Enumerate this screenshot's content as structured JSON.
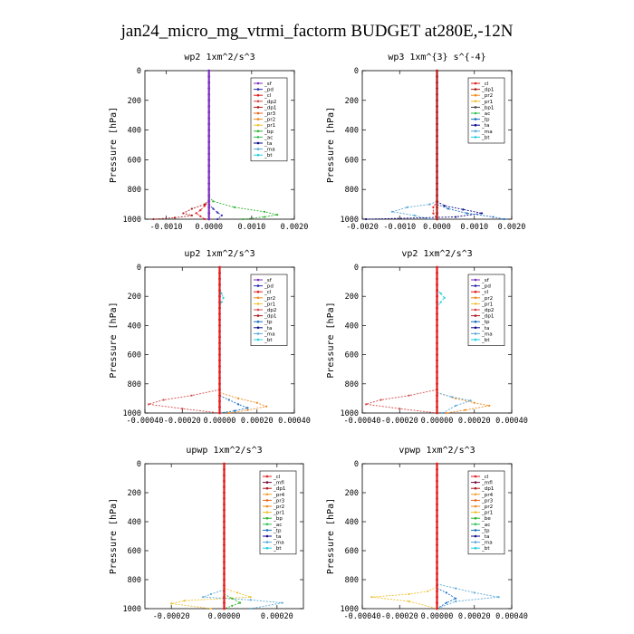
{
  "figure": {
    "title": "jan24_micro_mg_vtrmi_factorm  BUDGET at280E,-12N"
  },
  "colors": {
    "_sf": "#7b2fbe",
    "_pd": "#2a2ab4",
    "_cl": "#e21c1c",
    "_mfl": "#7a0e3a",
    "_dp1": "#b01c1c",
    "_dp2": "#d84848",
    "_dp3": "#d84848",
    "_pr1": "#f0c030",
    "_pr2": "#f08a1c",
    "_pr3": "#e8641c",
    "_pr4": "#f0a030",
    "_bp": "#2cb42c",
    "_be": "#2cb42c",
    "_ac": "#30c050",
    "_tp": "#1c70c0",
    "_ta": "#0a0a8c",
    "_ma": "#5aaad8",
    "_bt": "#20d0e0"
  },
  "chart_data": [
    {
      "type": "line",
      "title": "wp2  1xm^2/s^3",
      "ylabel": "Pressure [hPa]",
      "xlim": [
        -0.0015,
        0.002
      ],
      "ylim": [
        1000,
        0
      ],
      "xticks": [
        -0.001,
        0.0,
        0.001,
        0.002
      ],
      "xtick_labels": [
        "-0.0010",
        "0.0000",
        "0.0010",
        "0.0020"
      ],
      "yticks": [
        0,
        200,
        400,
        600,
        800,
        1000
      ],
      "legend": [
        "_sf",
        "_pd",
        "_cl",
        "_dp2",
        "_dp1",
        "_pr3",
        "_pr2",
        "_pr1",
        "_bp",
        "_ac",
        "_ta",
        "_ma",
        "_bt"
      ],
      "legend_position": "top-right",
      "series": [
        {
          "name": "_bp",
          "x": [
            0,
            0.0001,
            0.0006,
            0.0013,
            0.0016,
            0.0013,
            0.0008
          ],
          "y": [
            850,
            880,
            920,
            950,
            970,
            985,
            1000
          ]
        },
        {
          "name": "_dp1",
          "x": [
            0,
            -0.0001,
            -0.0004,
            -0.0006,
            -0.0004,
            -0.0008,
            -0.0013
          ],
          "y": [
            870,
            900,
            930,
            960,
            975,
            990,
            1000
          ]
        },
        {
          "name": "_cl",
          "x": [
            0,
            -0.0001,
            -0.0002,
            -0.0003,
            -0.0002,
            -0.0001
          ],
          "y": [
            880,
            910,
            940,
            960,
            980,
            1000
          ]
        },
        {
          "name": "_pd",
          "x": [
            0,
            0.0001,
            0.0002,
            0.0003,
            0.0002
          ],
          "y": [
            900,
            930,
            955,
            975,
            1000
          ]
        },
        {
          "name": "_sf",
          "x": [
            0,
            0,
            0
          ],
          "y": [
            0,
            500,
            1000
          ]
        }
      ]
    },
    {
      "type": "line",
      "title": "wp3  1xm^{3} s^{-4}",
      "ylabel": "Pressure [hPa]",
      "xlim": [
        -0.002,
        0.002
      ],
      "ylim": [
        1000,
        0
      ],
      "xticks": [
        -0.002,
        -0.001,
        0.0,
        0.001,
        0.002
      ],
      "xtick_labels": [
        "-0.0020",
        "-0.0010",
        "0.0000",
        "0.0010",
        "0.0020"
      ],
      "yticks": [
        0,
        200,
        400,
        600,
        800,
        1000
      ],
      "legend": [
        "_cl",
        "_dp1",
        "_pr2",
        "_pr1",
        "_bp1",
        "_ac",
        "_tp",
        "_ta",
        "_ma",
        "_bt"
      ],
      "legend_position": "top-right",
      "series": [
        {
          "name": "_ma",
          "x": [
            0,
            -0.0002,
            -0.0008,
            -0.0012,
            -0.0006,
            -0.0002
          ],
          "y": [
            880,
            900,
            920,
            950,
            975,
            1000
          ]
        },
        {
          "name": "_ta",
          "x": [
            0,
            0.0002,
            0.0007,
            0.0012,
            0.0005,
            -0.0019
          ],
          "y": [
            880,
            910,
            935,
            960,
            985,
            1000
          ]
        },
        {
          "name": "_tp",
          "x": [
            0,
            0.0003,
            0.0008,
            0.0015,
            0.0018
          ],
          "y": [
            900,
            930,
            960,
            985,
            1000
          ]
        },
        {
          "name": "_cl",
          "x": [
            0,
            -0.0001,
            -0.0001,
            0
          ],
          "y": [
            880,
            920,
            960,
            1000
          ]
        },
        {
          "name": "_dp1",
          "x": [
            0,
            0,
            0
          ],
          "y": [
            0,
            500,
            1000
          ]
        }
      ]
    },
    {
      "type": "line",
      "title": "up2  1xm^2/s^3",
      "ylabel": "Pressure [hPa]",
      "xlim": [
        -0.0004,
        0.0004
      ],
      "ylim": [
        1000,
        0
      ],
      "xticks": [
        -0.0004,
        -0.0002,
        0.0,
        0.0002,
        0.0004
      ],
      "xtick_labels": [
        "-0.00040",
        "-0.00020",
        "0.00000",
        "0.00020",
        "0.00040"
      ],
      "yticks": [
        0,
        200,
        400,
        600,
        800,
        1000
      ],
      "legend": [
        "_sf",
        "_pd",
        "_cl",
        "_pr2",
        "_pr1",
        "_dp2",
        "_dp1",
        "_tp",
        "_ta",
        "_ma",
        "_bt"
      ],
      "legend_position": "top-right",
      "series": [
        {
          "name": "_dp2",
          "x": [
            0,
            -0.00015,
            -0.0003,
            -0.00038,
            -0.0002,
            0
          ],
          "y": [
            840,
            880,
            910,
            940,
            970,
            1000
          ]
        },
        {
          "name": "_pr2",
          "x": [
            0,
            0.0001,
            0.0002,
            0.00025,
            0.00015,
            5e-05
          ],
          "y": [
            860,
            900,
            930,
            955,
            980,
            1000
          ]
        },
        {
          "name": "_tp",
          "x": [
            0,
            5e-05,
            0.0001,
            0.00015,
            8e-05,
            0
          ],
          "y": [
            880,
            910,
            940,
            965,
            985,
            1000
          ]
        },
        {
          "name": "_bt",
          "x": [
            0,
            1e-05,
            2e-05,
            1e-05,
            0
          ],
          "y": [
            150,
            180,
            210,
            240,
            270
          ]
        },
        {
          "name": "_cl",
          "x": [
            0,
            0,
            0
          ],
          "y": [
            0,
            500,
            1000
          ]
        }
      ]
    },
    {
      "type": "line",
      "title": "vp2  1xm^2/s^3",
      "ylabel": "Pressure [hPa]",
      "xlim": [
        -0.0004,
        0.0004
      ],
      "ylim": [
        1000,
        0
      ],
      "xticks": [
        -0.0004,
        -0.0002,
        0.0,
        0.0002,
        0.0004
      ],
      "xtick_labels": [
        "-0.00040",
        "-0.00020",
        "0.00000",
        "0.00020",
        "0.00040"
      ],
      "yticks": [
        0,
        200,
        400,
        600,
        800,
        1000
      ],
      "legend": [
        "_sf",
        "_pd",
        "_cl",
        "_pr2",
        "_pr1",
        "_dp2",
        "_dp1",
        "_tp",
        "_ta",
        "_ma",
        "_bt"
      ],
      "legend_position": "top-right",
      "series": [
        {
          "name": "_dp2",
          "x": [
            0,
            -0.00015,
            -0.0003,
            -0.00038,
            -0.0002,
            0
          ],
          "y": [
            840,
            880,
            910,
            940,
            970,
            1000
          ]
        },
        {
          "name": "_pr2",
          "x": [
            0,
            0.0001,
            0.0002,
            0.00028,
            0.00015,
            5e-05
          ],
          "y": [
            860,
            900,
            930,
            950,
            980,
            1000
          ]
        },
        {
          "name": "_ma",
          "x": [
            0,
            8e-05,
            0.00018,
            0.0001,
            3e-05
          ],
          "y": [
            860,
            890,
            915,
            950,
            1000
          ]
        },
        {
          "name": "_bt",
          "x": [
            0,
            2e-05,
            4e-05,
            2e-05,
            0
          ],
          "y": [
            150,
            180,
            210,
            240,
            270
          ]
        },
        {
          "name": "_cl",
          "x": [
            0,
            0,
            0
          ],
          "y": [
            0,
            500,
            1000
          ]
        }
      ]
    },
    {
      "type": "line",
      "title": "upwp  1xm^2/s^3",
      "ylabel": "Pressure [hPa]",
      "xlim": [
        -0.0003,
        0.0003
      ],
      "ylim": [
        1000,
        0
      ],
      "xticks": [
        -0.0002,
        0.0,
        0.0002
      ],
      "xtick_labels": [
        "-0.00020",
        "0.00000",
        "0.00020"
      ],
      "yticks": [
        0,
        200,
        400,
        600,
        800,
        1000
      ],
      "legend": [
        "_cl",
        "_mfl",
        "_dp1",
        "_pr4",
        "_pr3",
        "_pr2",
        "_pr1",
        "_bp",
        "_ac",
        "_tp",
        "_ta",
        "_ma",
        "_bt"
      ],
      "legend_position": "top-right",
      "series": [
        {
          "name": "_pr1",
          "x": [
            0,
            5e-05,
            0.0001,
            -0.00015,
            -0.0002,
            -5e-05
          ],
          "y": [
            860,
            890,
            920,
            945,
            965,
            1000
          ]
        },
        {
          "name": "_ma",
          "x": [
            0,
            -5e-05,
            -8e-05,
            0.0001,
            0.00022,
            0.0001
          ],
          "y": [
            870,
            900,
            920,
            940,
            960,
            1000
          ]
        },
        {
          "name": "_bp",
          "x": [
            0,
            3e-05,
            6e-05,
            3e-05,
            0
          ],
          "y": [
            900,
            930,
            960,
            980,
            1000
          ]
        },
        {
          "name": "_cl",
          "x": [
            0,
            0,
            0
          ],
          "y": [
            0,
            500,
            1000
          ]
        }
      ]
    },
    {
      "type": "line",
      "title": "vpwp  1xm^2/s^3",
      "ylabel": "Pressure [hPa]",
      "xlim": [
        -0.0004,
        0.0004
      ],
      "ylim": [
        1000,
        0
      ],
      "xticks": [
        -0.0004,
        -0.0002,
        0.0,
        0.0002,
        0.0004
      ],
      "xtick_labels": [
        "-0.00040",
        "-0.00020",
        "0.00000",
        "0.00020",
        "0.00040"
      ],
      "yticks": [
        0,
        200,
        400,
        600,
        800,
        1000
      ],
      "legend": [
        "_cl",
        "_mfl",
        "_dp1",
        "_pr4",
        "_pr3",
        "_pr2",
        "_pr1",
        "_be",
        "_ac",
        "_tp",
        "_ta",
        "_ma",
        "_bt"
      ],
      "legend_position": "top-right",
      "series": [
        {
          "name": "_pr1",
          "x": [
            0,
            -5e-05,
            -0.00015,
            -0.00035,
            -0.00015,
            0
          ],
          "y": [
            850,
            880,
            900,
            920,
            950,
            1000
          ]
        },
        {
          "name": "_ma",
          "x": [
            0,
            0.0001,
            0.0002,
            0.00033,
            0.0001,
            0
          ],
          "y": [
            830,
            860,
            890,
            920,
            950,
            1000
          ]
        },
        {
          "name": "_tp",
          "x": [
            0,
            5e-05,
            0.0001,
            5e-05,
            0
          ],
          "y": [
            860,
            890,
            930,
            960,
            1000
          ]
        },
        {
          "name": "_cl",
          "x": [
            0,
            0,
            0
          ],
          "y": [
            0,
            500,
            1000
          ]
        }
      ]
    }
  ]
}
